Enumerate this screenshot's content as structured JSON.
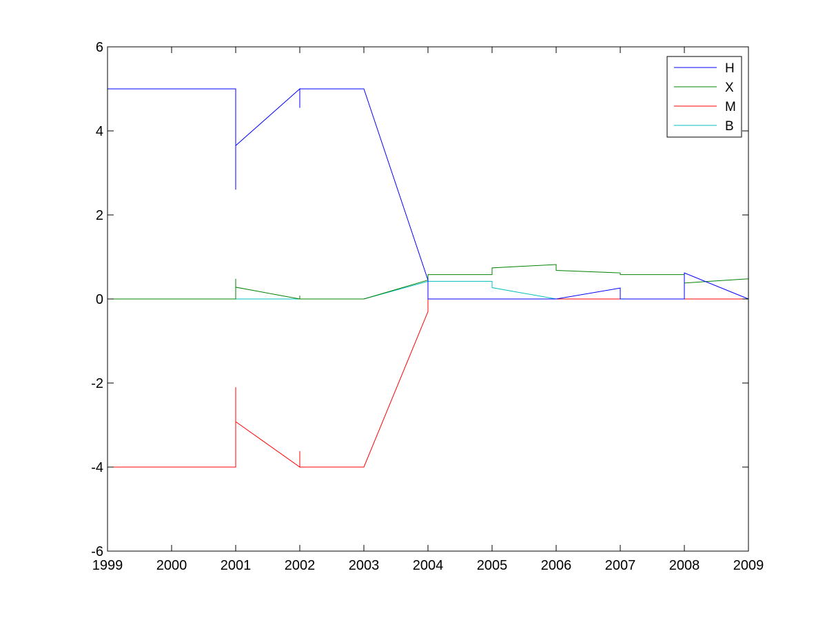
{
  "chart_data": {
    "type": "line",
    "title": "",
    "xlabel": "",
    "ylabel": "",
    "xlim": [
      1999,
      2009
    ],
    "ylim": [
      -6,
      6
    ],
    "xticks": [
      1999,
      2000,
      2001,
      2002,
      2003,
      2004,
      2005,
      2006,
      2007,
      2008,
      2009
    ],
    "yticks": [
      -6,
      -4,
      -2,
      0,
      2,
      4,
      6
    ],
    "xtick_labels": [
      "1999",
      "2000",
      "2001",
      "2002",
      "2003",
      "2004",
      "2005",
      "2006",
      "2007",
      "2008",
      "2009"
    ],
    "ytick_labels": [
      "-6",
      "-4",
      "-2",
      "0",
      "2",
      "4",
      "6"
    ],
    "grid": false,
    "legend_position": "top-right",
    "series": [
      {
        "name": "H",
        "color": "#0000ff",
        "points": [
          [
            1999,
            5
          ],
          [
            2001,
            5
          ],
          [
            2001,
            2.6
          ],
          [
            2001,
            3.65
          ],
          [
            2002,
            5
          ],
          [
            2002,
            4.55
          ],
          [
            2002,
            5
          ],
          [
            2003,
            5
          ],
          [
            2004,
            0.45
          ],
          [
            2004,
            0
          ],
          [
            2006,
            0
          ],
          [
            2007,
            0.26
          ],
          [
            2007,
            0
          ],
          [
            2008,
            0
          ],
          [
            2008,
            0.62
          ],
          [
            2009,
            0
          ]
        ]
      },
      {
        "name": "X",
        "color": "#008000",
        "points": [
          [
            1999,
            0
          ],
          [
            2001,
            0
          ],
          [
            2001,
            0.48
          ],
          [
            2001,
            0.28
          ],
          [
            2002,
            0
          ],
          [
            2002,
            0.08
          ],
          [
            2002,
            0
          ],
          [
            2003,
            0
          ],
          [
            2004,
            0.45
          ],
          [
            2004,
            0.58
          ],
          [
            2005,
            0.58
          ],
          [
            2005,
            0.74
          ],
          [
            2006,
            0.82
          ],
          [
            2006,
            0.68
          ],
          [
            2007,
            0.62
          ],
          [
            2007,
            0.58
          ],
          [
            2008,
            0.58
          ],
          [
            2008,
            0.38
          ],
          [
            2009,
            0.48
          ]
        ]
      },
      {
        "name": "M",
        "color": "#ff0000",
        "points": [
          [
            1999,
            -4
          ],
          [
            2001,
            -4
          ],
          [
            2001,
            -2.1
          ],
          [
            2001,
            -2.92
          ],
          [
            2002,
            -4
          ],
          [
            2002,
            -3.62
          ],
          [
            2002,
            -4
          ],
          [
            2003,
            -4
          ],
          [
            2004,
            -0.3
          ],
          [
            2004,
            0
          ],
          [
            2009,
            0
          ]
        ]
      },
      {
        "name": "B",
        "color": "#00bfbf",
        "points": [
          [
            1999,
            0
          ],
          [
            2003,
            0
          ],
          [
            2004,
            0.42
          ],
          [
            2005,
            0.42
          ],
          [
            2005,
            0.27
          ],
          [
            2006,
            0
          ],
          [
            2009,
            0
          ]
        ]
      }
    ]
  }
}
